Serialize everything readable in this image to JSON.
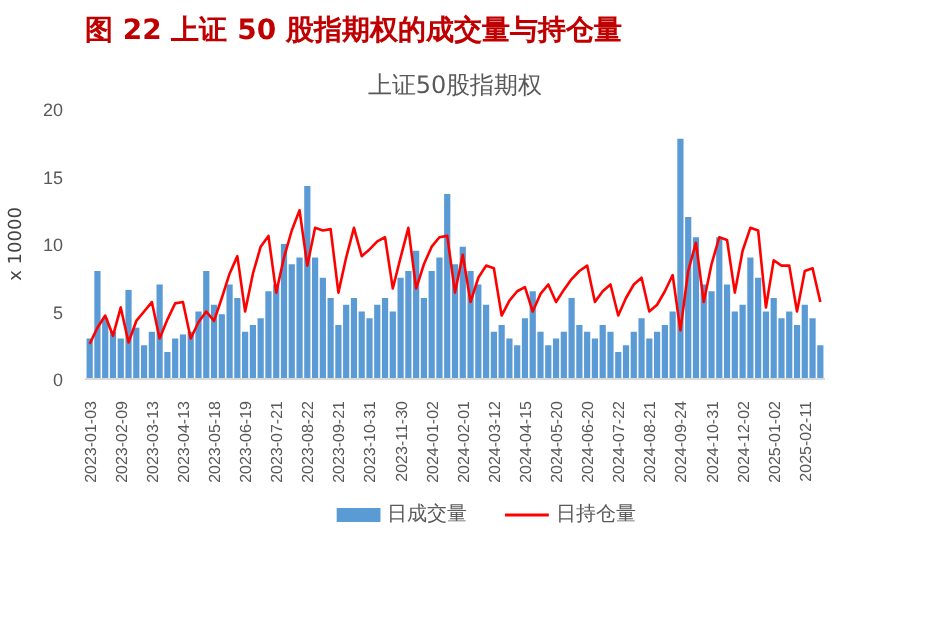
{
  "chart_data": {
    "type": "bar",
    "title": "图 22 上证 50 股指期权的成交量与持仓量",
    "subtitle": "上证50股指期权",
    "ylabel": "x 10000",
    "categories": [
      "2023-01-03",
      null,
      null,
      null,
      "2023-02-09",
      null,
      null,
      null,
      "2023-03-13",
      null,
      null,
      null,
      "2023-04-13",
      null,
      null,
      null,
      "2023-05-18",
      null,
      null,
      null,
      "2023-06-19",
      null,
      null,
      null,
      "2023-07-21",
      null,
      null,
      null,
      "2023-08-22",
      null,
      null,
      null,
      "2023-09-21",
      null,
      null,
      null,
      "2023-10-31",
      null,
      null,
      null,
      "2023-11-30",
      null,
      null,
      null,
      "2024-01-02",
      null,
      null,
      null,
      "2024-02-01",
      null,
      null,
      null,
      "2024-03-12",
      null,
      null,
      null,
      "2024-04-15",
      null,
      null,
      null,
      "2024-05-20",
      null,
      null,
      null,
      "2024-06-20",
      null,
      null,
      null,
      "2024-07-22",
      null,
      null,
      null,
      "2024-08-21",
      null,
      null,
      null,
      "2024-09-24",
      null,
      null,
      null,
      "2024-10-31",
      null,
      null,
      null,
      "2024-12-02",
      null,
      null,
      null,
      "2025-01-02",
      null,
      null,
      null,
      "2025-02-11",
      null,
      null
    ],
    "series": [
      {
        "name": "日成交量",
        "color": "#5b9bd5",
        "values": [
          3.0,
          8.0,
          4.5,
          3.5,
          3.0,
          6.6,
          3.8,
          2.5,
          3.5,
          7.0,
          2.0,
          3.0,
          3.3,
          3.5,
          5.0,
          8.0,
          5.5,
          4.8,
          7.0,
          6.0,
          3.5,
          4.0,
          4.5,
          6.5,
          7.0,
          10.0,
          8.5,
          9.0,
          14.3,
          9.0,
          7.5,
          6.0,
          4.0,
          5.5,
          6.0,
          5.0,
          4.5,
          5.5,
          6.0,
          5.0,
          7.5,
          8.0,
          9.5,
          6.0,
          8.0,
          9.0,
          13.7,
          8.5,
          9.8,
          8.0,
          7.0,
          5.5,
          3.5,
          4.0,
          3.0,
          2.5,
          4.5,
          6.5,
          3.5,
          2.5,
          3.0,
          3.5,
          6.0,
          4.0,
          3.5,
          3.0,
          4.0,
          3.5,
          2.0,
          2.5,
          3.5,
          4.5,
          3.0,
          3.5,
          4.0,
          5.0,
          17.8,
          12.0,
          10.5,
          7.0,
          6.5,
          10.5,
          7.0,
          5.0,
          5.5,
          9.0,
          7.5,
          5.0,
          6.0,
          4.5,
          5.0,
          4.0,
          5.5,
          4.5,
          2.5
        ]
      },
      {
        "name": "日持仓量",
        "type": "line",
        "color": "#ff0000",
        "values": [
          2.6,
          3.8,
          4.7,
          3.2,
          5.3,
          2.7,
          4.3,
          5.0,
          5.7,
          3.0,
          4.4,
          5.6,
          5.7,
          3.0,
          4.2,
          5.0,
          4.3,
          6.0,
          7.8,
          9.1,
          5.0,
          7.8,
          9.8,
          10.6,
          6.4,
          9.0,
          11.0,
          12.5,
          8.4,
          11.2,
          11.0,
          11.1,
          6.4,
          9.0,
          11.2,
          9.1,
          9.6,
          10.2,
          10.5,
          6.7,
          9.0,
          11.2,
          6.7,
          8.5,
          9.8,
          10.5,
          10.6,
          6.4,
          9.2,
          5.7,
          7.5,
          8.4,
          8.2,
          4.7,
          5.8,
          6.5,
          6.8,
          5.0,
          6.3,
          7.0,
          5.7,
          6.6,
          7.4,
          8.0,
          8.4,
          5.7,
          6.5,
          7.0,
          4.7,
          6.0,
          7.0,
          7.5,
          5.0,
          5.5,
          6.5,
          7.7,
          3.6,
          8.0,
          10.1,
          5.7,
          8.5,
          10.5,
          10.3,
          6.4,
          9.5,
          11.2,
          11.0,
          5.3,
          8.8,
          8.4,
          8.4,
          5.0,
          8.0,
          8.2,
          5.7
        ]
      }
    ],
    "ylim": [
      0,
      20
    ],
    "yticks": [
      0,
      5,
      10,
      15,
      20
    ],
    "grid": false,
    "legend": "bottom"
  }
}
